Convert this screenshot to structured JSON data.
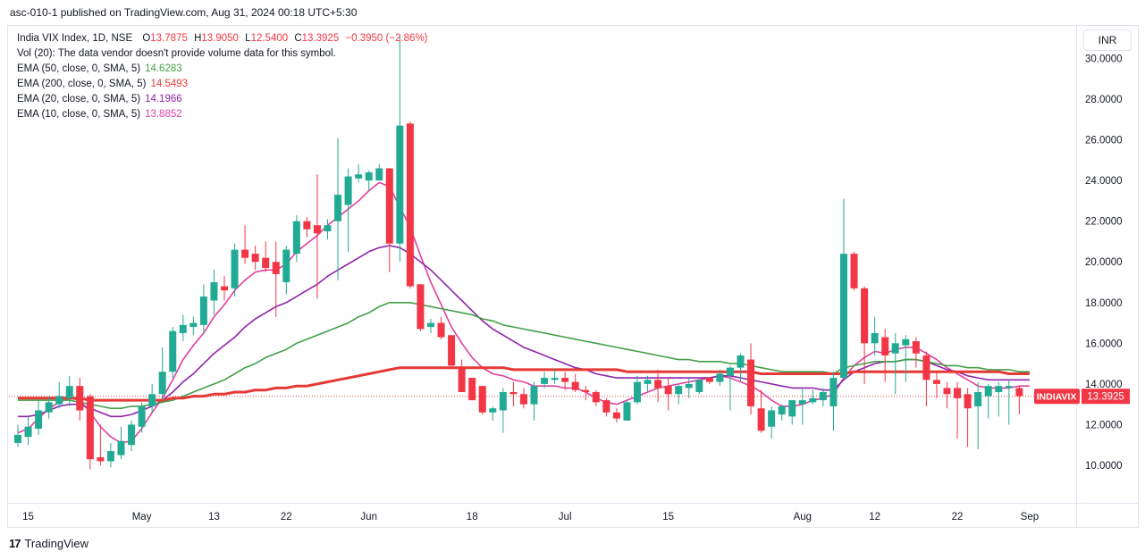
{
  "caption": "asc-010-1 published on TradingView.com, Aug 31, 2024 00:18 UTC+5:30",
  "footer": {
    "brand": "TradingView",
    "logo_mark": "17"
  },
  "currency_button": "INR",
  "legend": {
    "title": "India VIX Index, 1D, NSE",
    "ohlc": {
      "o_label": "O",
      "o": "13.7875",
      "h_label": "H",
      "h": "13.9050",
      "l_label": "L",
      "l": "12.5400",
      "c_label": "C",
      "c": "13.3925",
      "change": "−0.3950 (−2.86%)"
    },
    "volume_note": "Vol (20): The data vendor doesn't provide volume data for this symbol.",
    "indicators": [
      {
        "label": "EMA (50, close, 0, SMA, 5)",
        "value": "14.6283",
        "color": "#43a047"
      },
      {
        "label": "EMA (200, close, 0, SMA, 5)",
        "value": "14.5493",
        "color": "#e53935"
      },
      {
        "label": "EMA (20, close, 0, SMA, 5)",
        "value": "14.1966",
        "color": "#8e24aa"
      },
      {
        "label": "EMA (10, close, 0, SMA, 5)",
        "value": "13.8852",
        "color": "#e040a0"
      }
    ]
  },
  "price_badge": {
    "symbol": "INDIAVIX",
    "price": "13.3925"
  },
  "colors": {
    "up": "#26a69a",
    "down": "#ef5350",
    "up_body": "#22ab94",
    "down_body": "#f23645",
    "ema10": "#e040a0",
    "ema20": "#8e24aa",
    "ema50": "#43a047",
    "ema200": "#e53935",
    "last_price": "#f23645"
  },
  "chart_data": {
    "type": "candlestick",
    "title": "India VIX Index, 1D, NSE",
    "ylim": [
      8.2,
      31.6
    ],
    "y_ticks": [
      "10.0000",
      "12.0000",
      "14.0000",
      "16.0000",
      "18.0000",
      "20.0000",
      "22.0000",
      "24.0000",
      "26.0000",
      "28.0000",
      "30.0000"
    ],
    "x_ticks": [
      {
        "label": "15",
        "index": 1
      },
      {
        "label": "May",
        "index": 12
      },
      {
        "label": "13",
        "index": 19
      },
      {
        "label": "22",
        "index": 26
      },
      {
        "label": "Jun",
        "index": 34
      },
      {
        "label": "18",
        "index": 44
      },
      {
        "label": "Jul",
        "index": 53
      },
      {
        "label": "15",
        "index": 63
      },
      {
        "label": "Aug",
        "index": 76
      },
      {
        "label": "12",
        "index": 83
      },
      {
        "label": "22",
        "index": 91
      },
      {
        "label": "Sep",
        "index": 98
      }
    ],
    "last_price": 13.3925,
    "candles": [
      {
        "o": 11.1,
        "h": 12.0,
        "l": 10.9,
        "c": 11.5
      },
      {
        "o": 11.4,
        "h": 12.4,
        "l": 11.0,
        "c": 11.9
      },
      {
        "o": 11.8,
        "h": 13.2,
        "l": 11.5,
        "c": 12.7
      },
      {
        "o": 12.6,
        "h": 13.4,
        "l": 12.3,
        "c": 13.1
      },
      {
        "o": 13.0,
        "h": 14.1,
        "l": 12.8,
        "c": 13.4
      },
      {
        "o": 13.3,
        "h": 14.4,
        "l": 12.9,
        "c": 13.9
      },
      {
        "o": 13.9,
        "h": 14.3,
        "l": 12.2,
        "c": 12.7
      },
      {
        "o": 13.4,
        "h": 13.5,
        "l": 9.8,
        "c": 10.3
      },
      {
        "o": 10.4,
        "h": 12.0,
        "l": 10.0,
        "c": 10.2
      },
      {
        "o": 10.2,
        "h": 11.1,
        "l": 9.9,
        "c": 10.7
      },
      {
        "o": 10.5,
        "h": 11.9,
        "l": 10.3,
        "c": 11.2
      },
      {
        "o": 11.0,
        "h": 12.2,
        "l": 10.7,
        "c": 12.0
      },
      {
        "o": 11.9,
        "h": 13.1,
        "l": 11.6,
        "c": 12.9
      },
      {
        "o": 12.9,
        "h": 14.0,
        "l": 12.6,
        "c": 13.5
      },
      {
        "o": 13.5,
        "h": 15.8,
        "l": 13.2,
        "c": 14.6
      },
      {
        "o": 14.6,
        "h": 16.8,
        "l": 14.3,
        "c": 16.6
      },
      {
        "o": 16.5,
        "h": 17.4,
        "l": 16.1,
        "c": 16.9
      },
      {
        "o": 16.8,
        "h": 17.3,
        "l": 16.4,
        "c": 17.0
      },
      {
        "o": 16.9,
        "h": 18.9,
        "l": 16.5,
        "c": 18.3
      },
      {
        "o": 18.1,
        "h": 19.6,
        "l": 17.4,
        "c": 19.0
      },
      {
        "o": 18.8,
        "h": 19.3,
        "l": 18.1,
        "c": 18.6
      },
      {
        "o": 18.7,
        "h": 20.9,
        "l": 18.3,
        "c": 20.6
      },
      {
        "o": 20.6,
        "h": 21.8,
        "l": 19.9,
        "c": 20.2
      },
      {
        "o": 20.4,
        "h": 20.8,
        "l": 19.6,
        "c": 20.0
      },
      {
        "o": 20.2,
        "h": 21.0,
        "l": 19.5,
        "c": 19.7
      },
      {
        "o": 20.0,
        "h": 21.0,
        "l": 17.3,
        "c": 19.4
      },
      {
        "o": 19.0,
        "h": 20.8,
        "l": 18.4,
        "c": 20.6
      },
      {
        "o": 20.4,
        "h": 22.3,
        "l": 20.0,
        "c": 22.0
      },
      {
        "o": 22.0,
        "h": 22.2,
        "l": 21.2,
        "c": 21.6
      },
      {
        "o": 21.8,
        "h": 24.3,
        "l": 18.2,
        "c": 21.4
      },
      {
        "o": 21.5,
        "h": 22.1,
        "l": 21.1,
        "c": 21.8
      },
      {
        "o": 22.0,
        "h": 26.1,
        "l": 19.1,
        "c": 23.3
      },
      {
        "o": 22.8,
        "h": 24.6,
        "l": 20.5,
        "c": 24.2
      },
      {
        "o": 24.1,
        "h": 24.8,
        "l": 23.9,
        "c": 24.3
      },
      {
        "o": 24.0,
        "h": 24.5,
        "l": 23.5,
        "c": 24.4
      },
      {
        "o": 24.0,
        "h": 24.8,
        "l": 24.0,
        "c": 24.6
      },
      {
        "o": 24.6,
        "h": 24.6,
        "l": 19.5,
        "c": 20.9
      },
      {
        "o": 20.9,
        "h": 31.1,
        "l": 20.0,
        "c": 26.7
      },
      {
        "o": 26.8,
        "h": 26.9,
        "l": 18.7,
        "c": 18.8
      },
      {
        "o": 18.9,
        "h": 18.9,
        "l": 16.6,
        "c": 16.7
      },
      {
        "o": 16.8,
        "h": 17.2,
        "l": 16.5,
        "c": 17.0
      },
      {
        "o": 17.0,
        "h": 17.3,
        "l": 16.2,
        "c": 16.3
      },
      {
        "o": 16.4,
        "h": 16.4,
        "l": 14.8,
        "c": 14.9
      },
      {
        "o": 14.8,
        "h": 15.2,
        "l": 13.6,
        "c": 13.6
      },
      {
        "o": 14.3,
        "h": 14.3,
        "l": 13.2,
        "c": 13.2
      },
      {
        "o": 13.9,
        "h": 13.9,
        "l": 12.5,
        "c": 12.6
      },
      {
        "o": 12.6,
        "h": 12.9,
        "l": 12.2,
        "c": 12.8
      },
      {
        "o": 12.7,
        "h": 13.8,
        "l": 11.6,
        "c": 13.6
      },
      {
        "o": 13.6,
        "h": 14.1,
        "l": 12.9,
        "c": 13.5
      },
      {
        "o": 13.5,
        "h": 13.8,
        "l": 12.8,
        "c": 13.0
      },
      {
        "o": 13.0,
        "h": 14.1,
        "l": 12.2,
        "c": 13.9
      },
      {
        "o": 14.0,
        "h": 14.6,
        "l": 13.8,
        "c": 14.3
      },
      {
        "o": 14.2,
        "h": 14.7,
        "l": 14.0,
        "c": 14.3
      },
      {
        "o": 14.3,
        "h": 14.6,
        "l": 13.7,
        "c": 14.1
      },
      {
        "o": 14.1,
        "h": 14.5,
        "l": 13.6,
        "c": 13.7
      },
      {
        "o": 13.7,
        "h": 13.9,
        "l": 13.2,
        "c": 13.6
      },
      {
        "o": 13.6,
        "h": 13.7,
        "l": 12.9,
        "c": 13.1
      },
      {
        "o": 13.2,
        "h": 13.3,
        "l": 12.4,
        "c": 12.6
      },
      {
        "o": 12.6,
        "h": 12.8,
        "l": 12.1,
        "c": 12.3
      },
      {
        "o": 12.2,
        "h": 13.2,
        "l": 12.2,
        "c": 13.1
      },
      {
        "o": 13.1,
        "h": 14.4,
        "l": 13.0,
        "c": 14.1
      },
      {
        "o": 14.0,
        "h": 14.4,
        "l": 13.6,
        "c": 14.2
      },
      {
        "o": 14.2,
        "h": 14.7,
        "l": 13.1,
        "c": 13.8
      },
      {
        "o": 13.9,
        "h": 14.3,
        "l": 12.7,
        "c": 13.5
      },
      {
        "o": 13.5,
        "h": 14.0,
        "l": 13.0,
        "c": 13.9
      },
      {
        "o": 13.8,
        "h": 14.3,
        "l": 13.3,
        "c": 14.0
      },
      {
        "o": 13.6,
        "h": 14.2,
        "l": 13.5,
        "c": 14.2
      },
      {
        "o": 14.3,
        "h": 14.3,
        "l": 14.0,
        "c": 14.1
      },
      {
        "o": 14.1,
        "h": 14.7,
        "l": 13.9,
        "c": 14.5
      },
      {
        "o": 14.4,
        "h": 14.9,
        "l": 12.7,
        "c": 14.8
      },
      {
        "o": 14.8,
        "h": 15.5,
        "l": 14.1,
        "c": 15.4
      },
      {
        "o": 15.2,
        "h": 16.0,
        "l": 12.5,
        "c": 12.9
      },
      {
        "o": 12.8,
        "h": 13.7,
        "l": 11.6,
        "c": 11.7
      },
      {
        "o": 11.9,
        "h": 12.9,
        "l": 11.3,
        "c": 12.7
      },
      {
        "o": 12.5,
        "h": 13.0,
        "l": 12.2,
        "c": 12.9
      },
      {
        "o": 12.4,
        "h": 13.2,
        "l": 12.0,
        "c": 13.2
      },
      {
        "o": 13.0,
        "h": 13.8,
        "l": 12.0,
        "c": 13.2
      },
      {
        "o": 13.1,
        "h": 13.7,
        "l": 13.0,
        "c": 13.3
      },
      {
        "o": 13.2,
        "h": 13.8,
        "l": 12.9,
        "c": 13.6
      },
      {
        "o": 12.9,
        "h": 14.6,
        "l": 11.7,
        "c": 14.3
      },
      {
        "o": 14.3,
        "h": 23.1,
        "l": 14.2,
        "c": 20.4
      },
      {
        "o": 20.4,
        "h": 20.5,
        "l": 18.6,
        "c": 18.7
      },
      {
        "o": 18.7,
        "h": 18.8,
        "l": 14.0,
        "c": 16.0
      },
      {
        "o": 16.0,
        "h": 17.3,
        "l": 15.4,
        "c": 16.5
      },
      {
        "o": 16.3,
        "h": 16.7,
        "l": 14.1,
        "c": 15.4
      },
      {
        "o": 15.5,
        "h": 16.5,
        "l": 13.5,
        "c": 16.0
      },
      {
        "o": 15.9,
        "h": 16.4,
        "l": 14.1,
        "c": 16.2
      },
      {
        "o": 16.1,
        "h": 16.3,
        "l": 14.8,
        "c": 15.5
      },
      {
        "o": 15.4,
        "h": 15.6,
        "l": 12.9,
        "c": 14.2
      },
      {
        "o": 14.2,
        "h": 14.6,
        "l": 13.3,
        "c": 14.0
      },
      {
        "o": 13.8,
        "h": 14.1,
        "l": 12.8,
        "c": 13.5
      },
      {
        "o": 13.8,
        "h": 14.1,
        "l": 11.3,
        "c": 13.3
      },
      {
        "o": 13.5,
        "h": 13.8,
        "l": 10.9,
        "c": 12.8
      },
      {
        "o": 12.9,
        "h": 14.1,
        "l": 10.8,
        "c": 13.6
      },
      {
        "o": 13.4,
        "h": 14.0,
        "l": 12.3,
        "c": 13.9
      },
      {
        "o": 13.6,
        "h": 14.1,
        "l": 12.4,
        "c": 13.9
      },
      {
        "o": 13.8,
        "h": 14.2,
        "l": 12.0,
        "c": 13.9
      },
      {
        "o": 13.8,
        "h": 13.9,
        "l": 12.5,
        "c": 13.4
      }
    ],
    "series": [
      {
        "name": "EMA 10",
        "color": "#e040a0",
        "values": [
          11.6,
          11.8,
          12.3,
          12.8,
          13.1,
          13.3,
          13.2,
          12.6,
          11.9,
          11.4,
          11.1,
          11.2,
          11.8,
          12.6,
          13.3,
          14.2,
          15.2,
          15.9,
          16.5,
          17.3,
          17.9,
          18.6,
          19.1,
          19.5,
          19.6,
          19.6,
          19.9,
          20.5,
          20.9,
          21.3,
          21.8,
          22.2,
          22.6,
          23.0,
          23.5,
          23.9,
          23.7,
          22.7,
          21.7,
          20.3,
          19.0,
          17.9,
          16.8,
          16.0,
          15.3,
          14.8,
          14.5,
          14.4,
          14.2,
          14.1,
          13.9,
          13.9,
          13.9,
          13.8,
          13.8,
          13.6,
          13.3,
          13.1,
          13.0,
          13.2,
          13.4,
          13.6,
          13.8,
          13.9,
          14.0,
          14.1,
          14.2,
          14.3,
          14.4,
          14.3,
          14.1,
          13.9,
          13.6,
          13.2,
          12.9,
          12.9,
          13.0,
          13.2,
          13.3,
          13.5,
          14.3,
          14.9,
          15.3,
          15.6,
          15.5,
          15.7,
          15.8,
          15.8,
          15.5,
          15.2,
          14.8,
          14.5,
          14.2,
          13.9,
          13.8,
          13.8,
          13.8,
          13.9,
          13.9
        ]
      },
      {
        "name": "EMA 20",
        "color": "#8e24aa",
        "values": [
          12.4,
          12.4,
          12.5,
          12.7,
          12.9,
          13.0,
          13.0,
          12.8,
          12.6,
          12.4,
          12.4,
          12.5,
          12.7,
          12.9,
          13.2,
          13.6,
          14.1,
          14.5,
          15.0,
          15.5,
          15.9,
          16.3,
          16.8,
          17.2,
          17.5,
          17.8,
          18.0,
          18.3,
          18.6,
          18.9,
          19.3,
          19.6,
          19.9,
          20.2,
          20.5,
          20.7,
          20.8,
          20.7,
          20.4,
          20.0,
          19.6,
          19.1,
          18.6,
          18.1,
          17.6,
          17.1,
          16.7,
          16.4,
          16.1,
          15.8,
          15.6,
          15.4,
          15.2,
          15.0,
          14.8,
          14.7,
          14.5,
          14.4,
          14.3,
          14.3,
          14.3,
          14.3,
          14.3,
          14.3,
          14.3,
          14.3,
          14.3,
          14.3,
          14.4,
          14.4,
          14.3,
          14.2,
          14.1,
          14.0,
          13.9,
          13.8,
          13.8,
          13.8,
          13.7,
          13.7,
          14.2,
          14.6,
          14.8,
          15.0,
          15.1,
          15.1,
          15.2,
          15.2,
          15.1,
          14.9,
          14.7,
          14.6,
          14.4,
          14.3,
          14.2,
          14.2,
          14.2,
          14.2,
          14.2
        ]
      },
      {
        "name": "EMA 50",
        "color": "#43a047",
        "values": [
          13.2,
          13.2,
          13.2,
          13.2,
          13.2,
          13.2,
          13.1,
          13.0,
          12.9,
          12.8,
          12.8,
          12.9,
          12.9,
          13.0,
          13.1,
          13.2,
          13.4,
          13.6,
          13.8,
          14.0,
          14.2,
          14.5,
          14.8,
          15.0,
          15.3,
          15.5,
          15.7,
          16.0,
          16.2,
          16.4,
          16.6,
          16.8,
          17.0,
          17.3,
          17.5,
          17.8,
          18.0,
          18.0,
          18.0,
          17.9,
          17.8,
          17.7,
          17.6,
          17.5,
          17.4,
          17.2,
          17.1,
          16.9,
          16.8,
          16.7,
          16.6,
          16.5,
          16.4,
          16.3,
          16.2,
          16.1,
          16.0,
          15.9,
          15.8,
          15.7,
          15.6,
          15.5,
          15.4,
          15.3,
          15.2,
          15.2,
          15.1,
          15.1,
          15.1,
          15.0,
          15.0,
          14.9,
          14.8,
          14.7,
          14.6,
          14.6,
          14.6,
          14.6,
          14.6,
          14.5,
          14.8,
          14.9,
          15.0,
          15.1,
          15.1,
          15.1,
          15.2,
          15.2,
          15.1,
          15.0,
          14.9,
          14.9,
          14.8,
          14.8,
          14.7,
          14.7,
          14.7,
          14.6,
          14.6
        ]
      },
      {
        "name": "EMA 200",
        "color": "#e53935",
        "values": [
          13.3,
          13.3,
          13.3,
          13.3,
          13.3,
          13.3,
          13.3,
          13.2,
          13.2,
          13.2,
          13.2,
          13.2,
          13.2,
          13.2,
          13.2,
          13.3,
          13.3,
          13.4,
          13.4,
          13.5,
          13.5,
          13.6,
          13.6,
          13.7,
          13.7,
          13.8,
          13.8,
          13.9,
          13.9,
          14.0,
          14.1,
          14.2,
          14.3,
          14.4,
          14.5,
          14.6,
          14.7,
          14.8,
          14.8,
          14.8,
          14.8,
          14.8,
          14.8,
          14.8,
          14.8,
          14.8,
          14.8,
          14.8,
          14.7,
          14.7,
          14.7,
          14.7,
          14.7,
          14.7,
          14.7,
          14.7,
          14.7,
          14.7,
          14.7,
          14.6,
          14.6,
          14.6,
          14.6,
          14.6,
          14.6,
          14.6,
          14.6,
          14.6,
          14.6,
          14.6,
          14.6,
          14.6,
          14.5,
          14.5,
          14.5,
          14.5,
          14.5,
          14.5,
          14.5,
          14.5,
          14.5,
          14.6,
          14.6,
          14.6,
          14.6,
          14.6,
          14.6,
          14.6,
          14.6,
          14.6,
          14.6,
          14.6,
          14.6,
          14.6,
          14.6,
          14.6,
          14.5,
          14.5,
          14.5
        ]
      }
    ]
  }
}
